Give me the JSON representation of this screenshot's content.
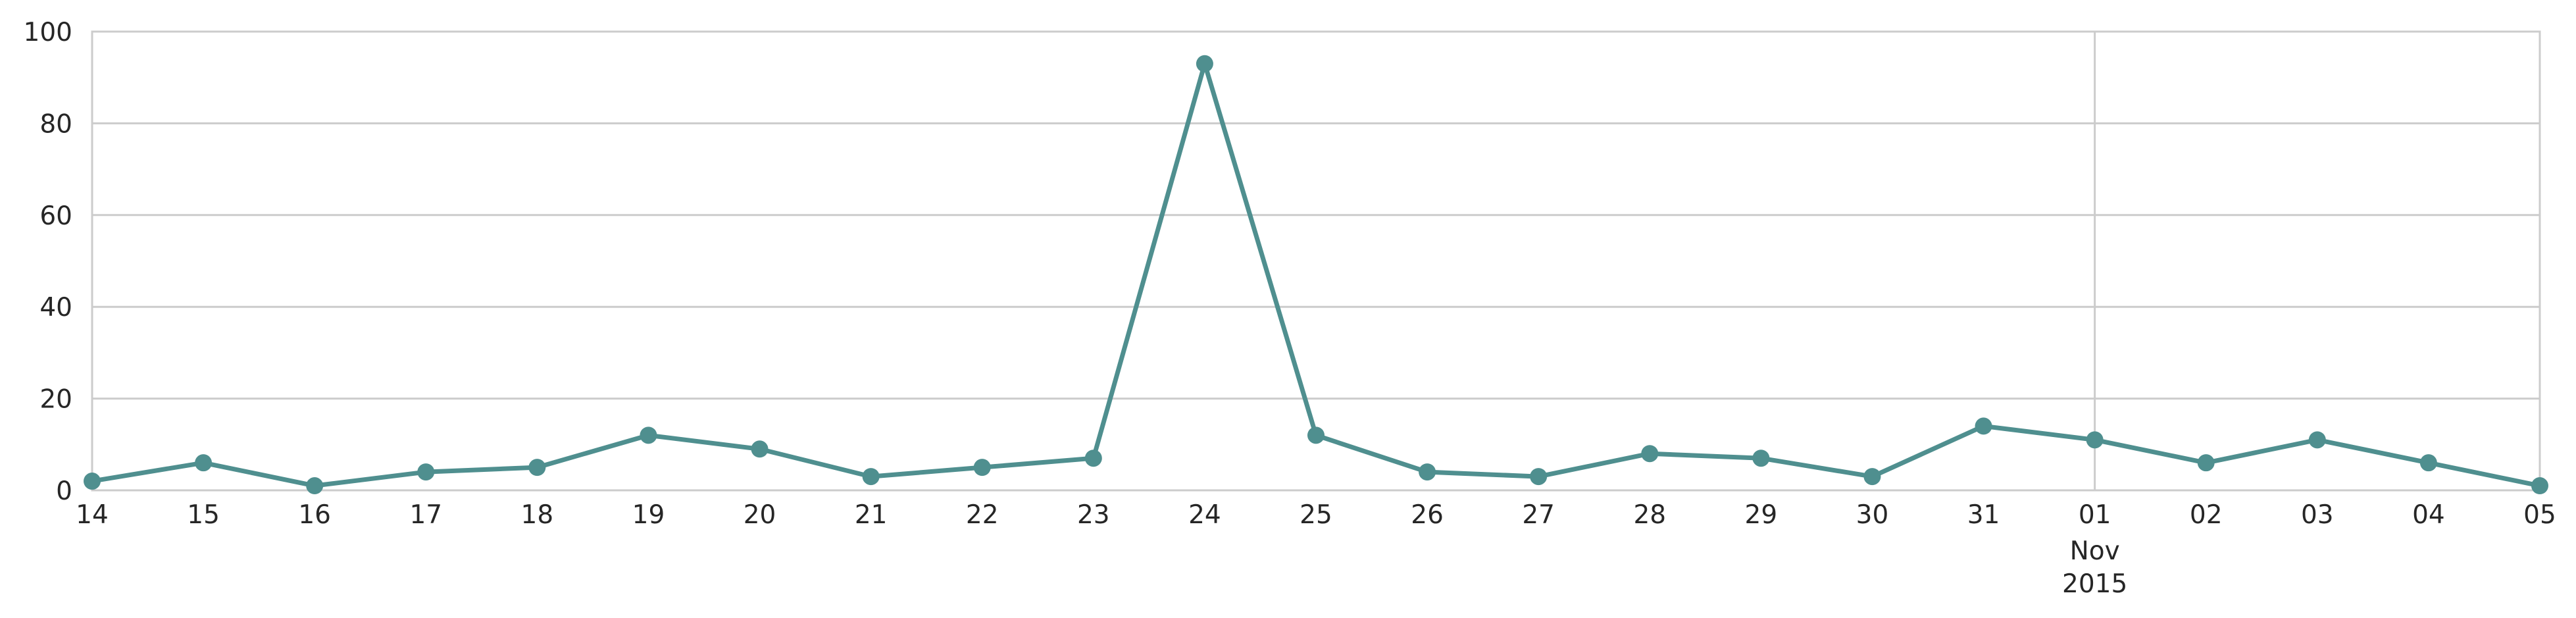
{
  "chart_data": {
    "type": "line",
    "title": "",
    "xlabel": "",
    "ylabel": "",
    "ylim": [
      0,
      100
    ],
    "y_ticks": [
      "0",
      "20",
      "40",
      "60",
      "80",
      "100"
    ],
    "x_ticks": [
      {
        "label": "14"
      },
      {
        "label": "15"
      },
      {
        "label": "16"
      },
      {
        "label": "17"
      },
      {
        "label": "18"
      },
      {
        "label": "19"
      },
      {
        "label": "20"
      },
      {
        "label": "21"
      },
      {
        "label": "22"
      },
      {
        "label": "23"
      },
      {
        "label": "24"
      },
      {
        "label": "25"
      },
      {
        "label": "26"
      },
      {
        "label": "27"
      },
      {
        "label": "28"
      },
      {
        "label": "29"
      },
      {
        "label": "30"
      },
      {
        "label": "31"
      },
      {
        "label": "01",
        "sub": [
          "Nov",
          "2015"
        ]
      },
      {
        "label": "02"
      },
      {
        "label": "03"
      },
      {
        "label": "04"
      },
      {
        "label": "05"
      }
    ],
    "x": [
      "2015-10-14",
      "2015-10-15",
      "2015-10-16",
      "2015-10-17",
      "2015-10-18",
      "2015-10-19",
      "2015-10-20",
      "2015-10-21",
      "2015-10-22",
      "2015-10-23",
      "2015-10-24",
      "2015-10-25",
      "2015-10-26",
      "2015-10-27",
      "2015-10-28",
      "2015-10-29",
      "2015-10-30",
      "2015-10-31",
      "2015-11-01",
      "2015-11-02",
      "2015-11-03",
      "2015-11-04",
      "2015-11-05"
    ],
    "values": [
      2,
      6,
      1,
      4,
      5,
      12,
      9,
      3,
      5,
      7,
      93,
      12,
      4,
      3,
      8,
      7,
      3,
      14,
      11,
      6,
      11,
      6,
      1
    ],
    "grid": true,
    "series_color": "#4f8f8f",
    "grid_color": "#cccccc",
    "text_color": "#262626"
  }
}
